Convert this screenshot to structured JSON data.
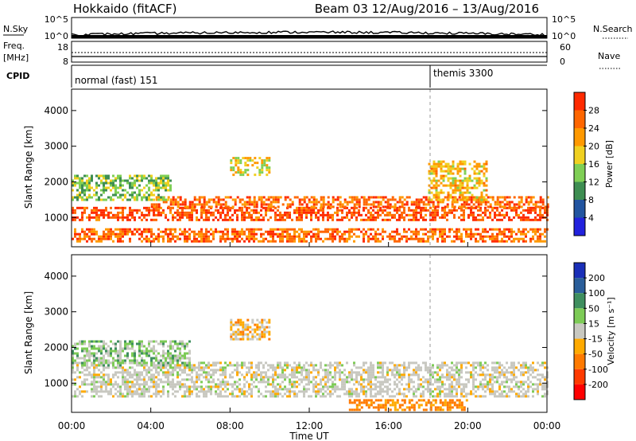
{
  "header": {
    "station": "Hokkaido (fitACF)",
    "beam_range": "Beam 03  12/Aug/2016 – 13/Aug/2016"
  },
  "noise_panel": {
    "left_label": "N.Sky",
    "right_label": "N.Search",
    "left_ticks": [
      "10^5",
      "10^0"
    ],
    "right_ticks": [
      "10^5",
      "10^0"
    ]
  },
  "freq_panel": {
    "left_label_1": "Freq.",
    "left_label_2": "[MHz]",
    "right_label": "Nave",
    "left_ticks": [
      "18",
      "8"
    ],
    "right_ticks": [
      "60",
      "0"
    ]
  },
  "cpid_panel": {
    "label": "CPID",
    "mode_1": "normal (fast) 151",
    "mode_2": "themis 3300"
  },
  "axes": {
    "ylabel": "Slant Range [km]",
    "xlabel": "Time UT",
    "y_ticks": [
      "1000",
      "2000",
      "3000",
      "4000"
    ],
    "x_ticks": [
      "00:00",
      "04:00",
      "08:00",
      "12:00",
      "16:00",
      "20:00",
      "00:00"
    ]
  },
  "power_colorbar": {
    "label": "Power [dB]",
    "ticks": [
      "4",
      "8",
      "12",
      "16",
      "20",
      "24",
      "28"
    ],
    "colors": [
      "#2222dd",
      "#2255a0",
      "#3e8e52",
      "#7fcf55",
      "#f0d020",
      "#ff9900",
      "#ff6600",
      "#ff2a00"
    ]
  },
  "velocity_colorbar": {
    "label": "Velocity [m s⁻¹]",
    "ticks": [
      "200",
      "100",
      "50",
      "15",
      "-15",
      "-50",
      "-100",
      "-200"
    ],
    "colors": [
      "#1a2fb8",
      "#2a5e9a",
      "#3f8f5f",
      "#7dcb56",
      "#c8c8c0",
      "#ffaa00",
      "#ff7a00",
      "#ff3a00",
      "#ff0000"
    ]
  },
  "chart_data": [
    {
      "type": "heatmap",
      "title": "Power",
      "xlabel": "Time UT",
      "ylabel": "Slant Range [km]",
      "xlim": [
        "12/Aug/2016 00:00",
        "13/Aug/2016 00:00"
      ],
      "ylim": [
        180,
        4600
      ],
      "colorbar_label": "Power [dB]",
      "value_range": [
        0,
        30
      ],
      "bands": [
        {
          "x_range_h": [
            0,
            24
          ],
          "range_km": [
            900,
            1300
          ],
          "value_db": 28
        },
        {
          "x_range_h": [
            0,
            24
          ],
          "range_km": [
            350,
            700
          ],
          "value_db": 26
        },
        {
          "x_range_h": [
            4,
            24
          ],
          "range_km": [
            1300,
            1600
          ],
          "value_db": 26
        },
        {
          "x_range_h": [
            0,
            5
          ],
          "range_km": [
            1500,
            2200
          ],
          "value_db": 14
        },
        {
          "x_range_h": [
            8,
            10
          ],
          "range_km": [
            2200,
            2700
          ],
          "value_db": 18
        },
        {
          "x_range_h": [
            18,
            21
          ],
          "range_km": [
            1500,
            2600
          ],
          "value_db": 20
        }
      ]
    },
    {
      "type": "heatmap",
      "title": "Velocity",
      "xlabel": "Time UT",
      "ylabel": "Slant Range [km]",
      "xlim": [
        "12/Aug/2016 00:00",
        "13/Aug/2016 00:00"
      ],
      "ylim": [
        180,
        4600
      ],
      "colorbar_label": "Velocity [m s⁻¹]",
      "value_range": [
        -200,
        200
      ],
      "bands": [
        {
          "x_range_h": [
            0,
            24
          ],
          "range_km": [
            600,
            1600
          ],
          "value_ms": 0
        },
        {
          "x_range_h": [
            14,
            20
          ],
          "range_km": [
            250,
            550
          ],
          "value_ms": -40
        },
        {
          "x_range_h": [
            0,
            6
          ],
          "range_km": [
            1500,
            2200
          ],
          "value_ms": 20
        },
        {
          "x_range_h": [
            8,
            10
          ],
          "range_km": [
            2200,
            2800
          ],
          "value_ms": -20
        }
      ]
    }
  ]
}
